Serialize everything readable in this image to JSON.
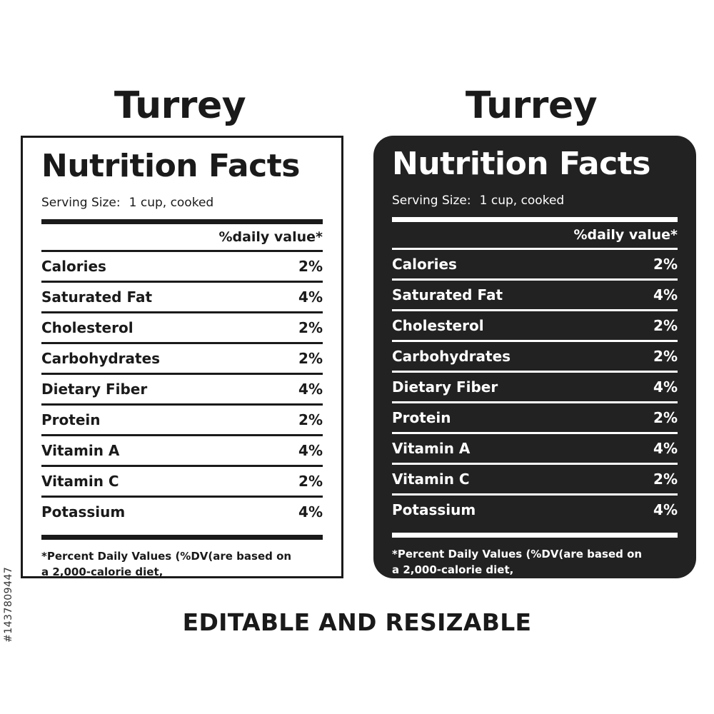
{
  "product_name": "Turrey",
  "panel": {
    "heading": "Nutrition Facts",
    "serving_label": "Serving Size:",
    "serving_value": "1 cup, cooked",
    "dv_header": "%daily value*",
    "nutrients": [
      {
        "name": "Calories",
        "value": "2%"
      },
      {
        "name": "Saturated Fat",
        "value": "4%"
      },
      {
        "name": "Cholesterol",
        "value": "2%"
      },
      {
        "name": "Carbohydrates",
        "value": "2%"
      },
      {
        "name": "Dietary Fiber",
        "value": "4%"
      },
      {
        "name": "Protein",
        "value": "2%"
      },
      {
        "name": "Vitamin A",
        "value": "4%"
      },
      {
        "name": "Vitamin C",
        "value": "2%"
      },
      {
        "name": "Potassium",
        "value": "4%"
      }
    ],
    "footnote": "*Percent Daily Values (%DV(are  based on a 2,000-calorie diet,"
  },
  "caption": "EDITABLE AND RESIZABLE",
  "stock_id": "#1437809447",
  "colors": {
    "ink": "#1a1a1a",
    "dark_panel": "#222222",
    "light_panel": "#ffffff"
  }
}
